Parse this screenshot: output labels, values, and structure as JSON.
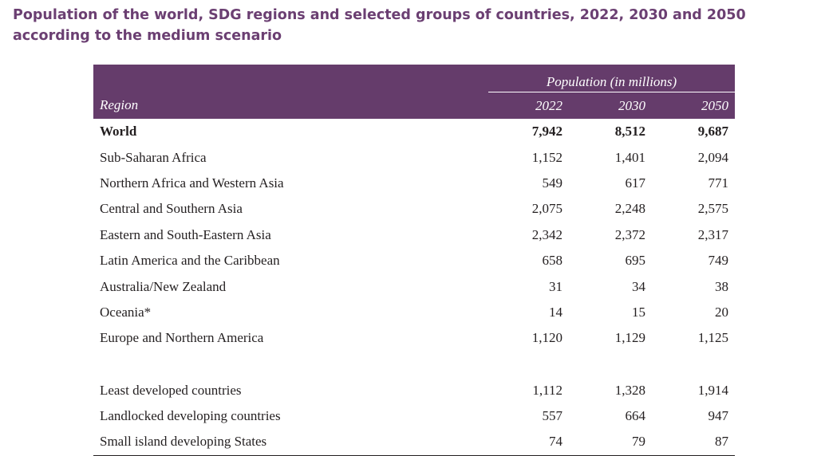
{
  "title": "Population of the world, SDG regions and selected groups of countries, 2022, 2030 and 2050 according to the medium scenario",
  "table": {
    "group_header": "Population (in millions)",
    "region_header": "Region",
    "years": [
      "2022",
      "2030",
      "2050"
    ],
    "rows": [
      {
        "region": "World",
        "values": [
          "7,942",
          "8,512",
          "9,687"
        ]
      },
      {
        "region": "Sub-Saharan Africa",
        "values": [
          "1,152",
          "1,401",
          "2,094"
        ]
      },
      {
        "region": "Northern Africa and Western Asia",
        "values": [
          "549",
          "617",
          "771"
        ]
      },
      {
        "region": "Central and Southern Asia",
        "values": [
          "2,075",
          "2,248",
          "2,575"
        ]
      },
      {
        "region": "Eastern and South-Eastern Asia",
        "values": [
          "2,342",
          "2,372",
          "2,317"
        ]
      },
      {
        "region": "Latin America and the Caribbean",
        "values": [
          "658",
          "695",
          "749"
        ]
      },
      {
        "region": "Australia/New Zealand",
        "values": [
          "31",
          "34",
          "38"
        ]
      },
      {
        "region": "Oceania*",
        "values": [
          "14",
          "15",
          "20"
        ]
      },
      {
        "region": "Europe and Northern America",
        "values": [
          "1,120",
          "1,129",
          "1,125"
        ]
      },
      {
        "region": "Least developed countries",
        "values": [
          "1,112",
          "1,328",
          "1,914"
        ]
      },
      {
        "region": "Landlocked developing countries",
        "values": [
          "557",
          "664",
          "947"
        ]
      },
      {
        "region": "Small island developing States",
        "values": [
          "74",
          "79",
          "87"
        ]
      }
    ]
  },
  "colors": {
    "accent": "#6b3f72",
    "header_bg": "#653c6b"
  }
}
